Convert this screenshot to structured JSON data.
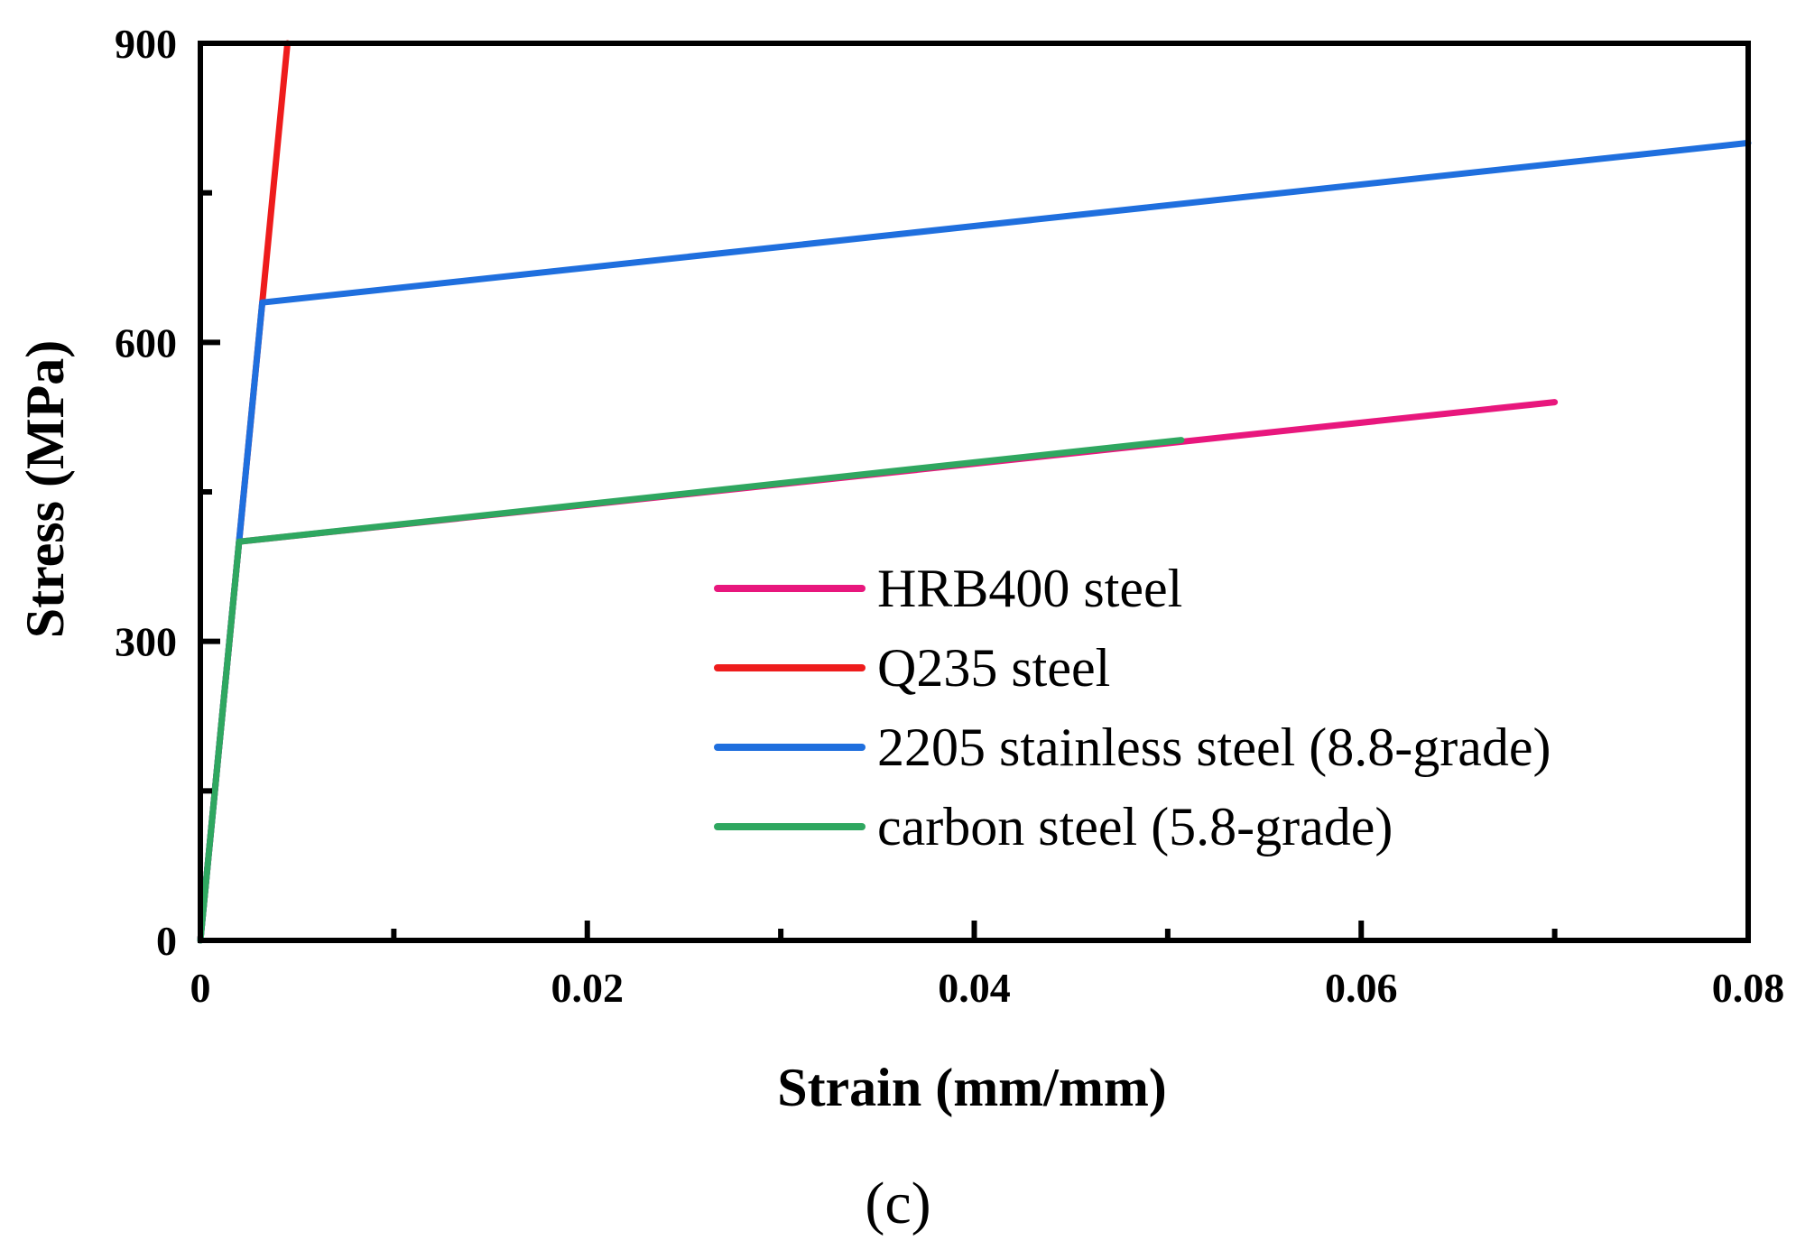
{
  "chart_data": {
    "type": "line",
    "title": "",
    "xlabel": "Strain (mm/mm)",
    "ylabel": "Stress (MPa)",
    "xlim": [
      0,
      0.08
    ],
    "ylim": [
      0,
      900
    ],
    "x_ticks": [
      0,
      0.02,
      0.04,
      0.06,
      0.08
    ],
    "x_tick_labels": [
      "0",
      "0.02",
      "0.04",
      "0.06",
      "0.08"
    ],
    "y_ticks": [
      0,
      300,
      600,
      900
    ],
    "y_tick_labels": [
      "0",
      "300",
      "600",
      "900"
    ],
    "x_minor_ticks": [
      0.01,
      0.03,
      0.05,
      0.07
    ],
    "y_minor_ticks": [
      150,
      450,
      750
    ],
    "grid": false,
    "legend_position": "center-right",
    "series": [
      {
        "name": "HRB400 steel",
        "color": "#e8177d",
        "x": [
          0,
          0.002,
          0.07
        ],
        "y": [
          0,
          400,
          540
        ]
      },
      {
        "name": "Q235 steel",
        "color": "#ee1c1c",
        "x": [
          0,
          0.0045
        ],
        "y": [
          0,
          900
        ]
      },
      {
        "name": "2205 stainless steel (8.8-grade)",
        "color": "#1f6fde",
        "x": [
          0,
          0.0032,
          0.08
        ],
        "y": [
          0,
          640,
          800
        ]
      },
      {
        "name": "carbon steel (5.8-grade)",
        "color": "#2fa760",
        "x": [
          0,
          0.002,
          0.0507
        ],
        "y": [
          0,
          400,
          502
        ]
      }
    ],
    "caption": "(c)"
  }
}
